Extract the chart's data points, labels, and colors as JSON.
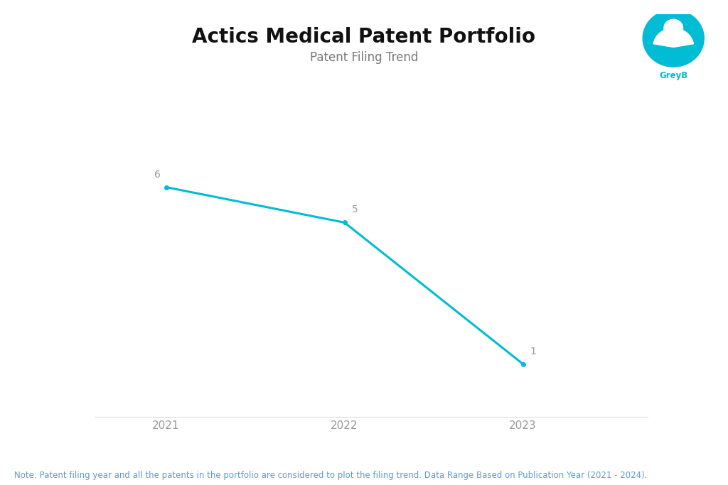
{
  "title": "Actics Medical Patent Portfolio",
  "subtitle": "Patent Filing Trend",
  "x_values": [
    2021,
    2022,
    2023
  ],
  "y_values": [
    6,
    5,
    1
  ],
  "line_color": "#00BCD4",
  "marker_color": "#00BCD4",
  "data_label_color": "#999999",
  "data_label_fontsize": 10,
  "title_fontsize": 20,
  "subtitle_fontsize": 12,
  "subtitle_color": "#777777",
  "xlabel_color": "#999999",
  "xlabel_fontsize": 11,
  "note_text": "Note: Patent filing year and all the patents in the portfolio are considered to plot the filing trend. Data Range Based on Publication Year (2021 - 2024).",
  "note_color": "#5b9bd5",
  "note_fontsize": 8.5,
  "background_color": "#ffffff",
  "line_width": 2.2,
  "ylim": [
    -0.5,
    8.0
  ],
  "xlim": [
    2020.6,
    2023.7
  ]
}
